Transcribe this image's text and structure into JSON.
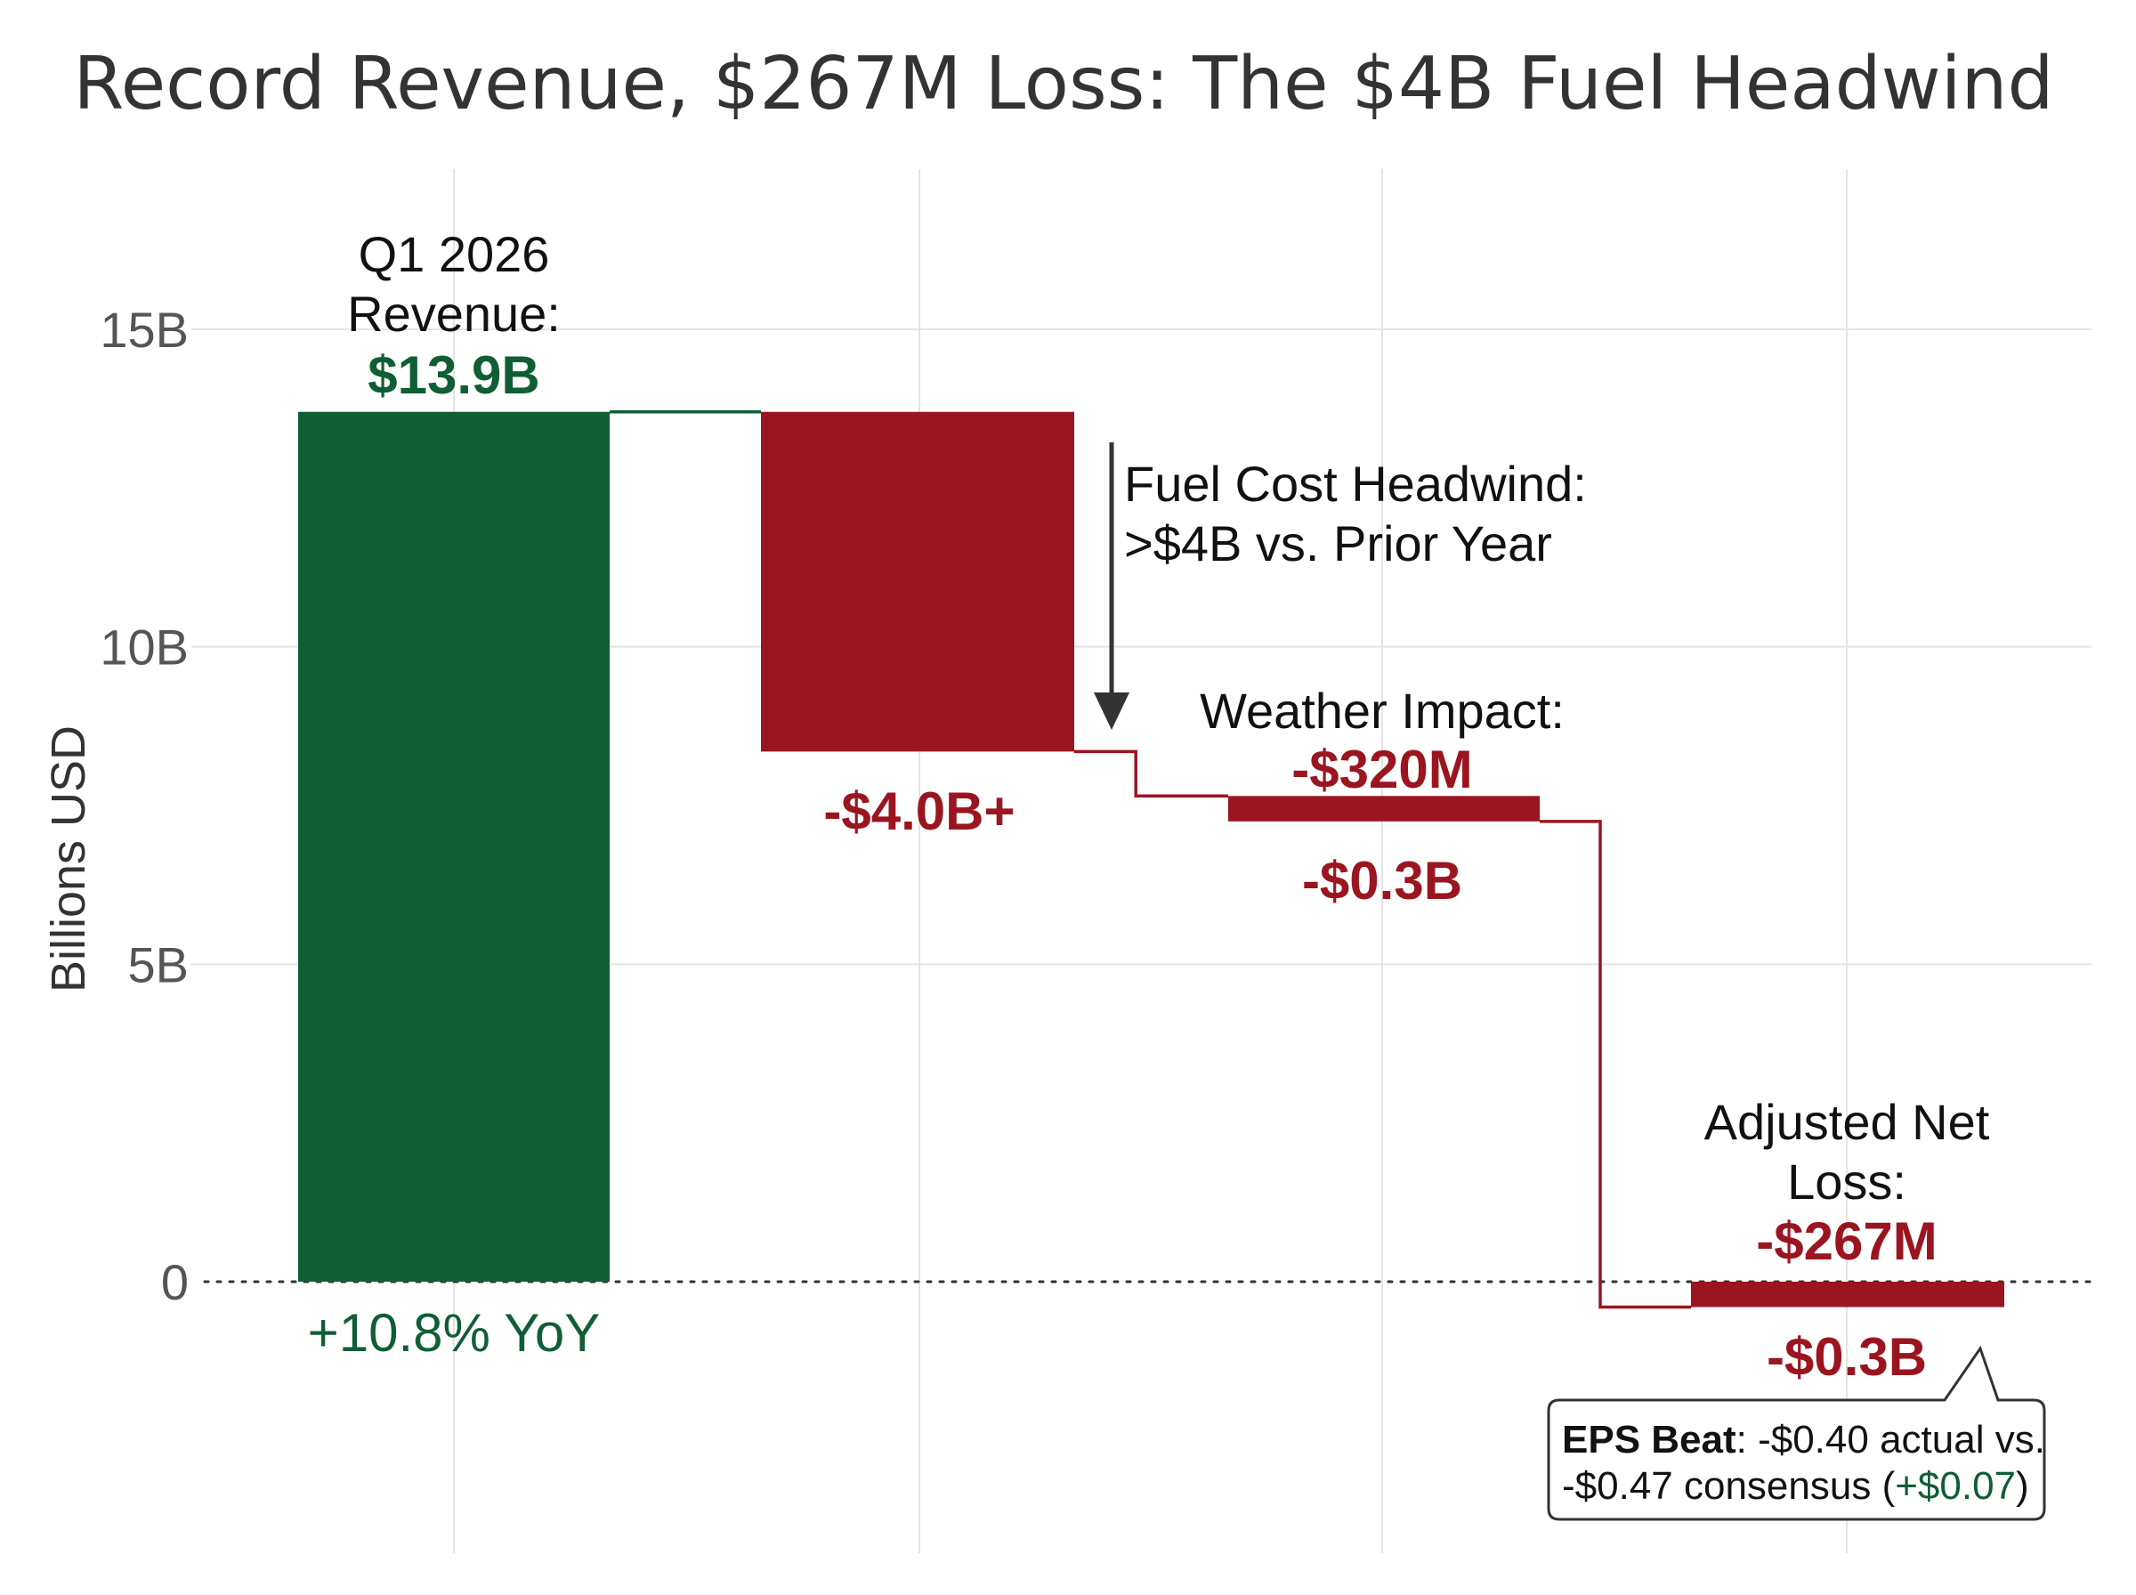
{
  "chart_data": {
    "type": "waterfall",
    "title": "Record Revenue, $267M Loss: The $4B Fuel Headwind",
    "ylabel": "Billions USD",
    "xlabel": "",
    "ylim": [
      -4.2,
      17.5
    ],
    "yticks": [
      {
        "value": 15,
        "label": "15B"
      },
      {
        "value": 10,
        "label": "10B"
      },
      {
        "value": 5,
        "label": "5B"
      },
      {
        "value": 0,
        "label": "0"
      }
    ],
    "grid": true,
    "bars": [
      {
        "name": "revenue",
        "start": 0,
        "end": 13.7,
        "display_value": 13.9,
        "color": "#0f5e34"
      },
      {
        "name": "fuel",
        "start": 13.7,
        "end": 8.35,
        "display_value": -4.0,
        "color": "#9b1520"
      },
      {
        "name": "weather",
        "start": 7.65,
        "end": 7.25,
        "display_value": -0.32,
        "color": "#9b1520"
      },
      {
        "name": "net-loss",
        "start": 0,
        "end": -0.4,
        "display_value": -0.267,
        "color": "#9b1520"
      }
    ],
    "connectors": [
      [
        {
          "x": 1,
          "y": 13.7
        },
        {
          "x": 2,
          "y": 13.7
        }
      ],
      [
        {
          "x": 3,
          "y": 8.35
        },
        {
          "x": 3.4,
          "y": 8.35
        },
        {
          "x": 3.4,
          "y": 7.65
        },
        {
          "x": 4,
          "y": 7.65
        }
      ],
      [
        {
          "x": 5,
          "y": 7.25
        },
        {
          "x": 5.4,
          "y": 7.25
        },
        {
          "x": 5.4,
          "y": -0.4
        },
        {
          "x": 6,
          "y": -0.4
        }
      ]
    ],
    "annotations": {
      "revenue": {
        "line1": "Q1 2026",
        "line2": "Revenue:",
        "value": "$13.9B",
        "below": "+10.8% YoY"
      },
      "fuel": {
        "line1": "Fuel Cost Headwind:",
        "line2": ">$4B vs. Prior Year",
        "below": "-$4.0B+"
      },
      "weather": {
        "line1": "Weather Impact:",
        "value": "-$320M",
        "below": "-$0.3B"
      },
      "net_loss": {
        "line1": "Adjusted Net",
        "line2": "Loss:",
        "value": "-$267M",
        "below": "-$0.3B"
      }
    },
    "eps_box": {
      "bold": "EPS Beat",
      "line1_rest": ": -$0.40 actual vs.",
      "line2_start": "-$0.47 consensus (",
      "line2_green": "+$0.07",
      "line2_end": ")"
    }
  }
}
